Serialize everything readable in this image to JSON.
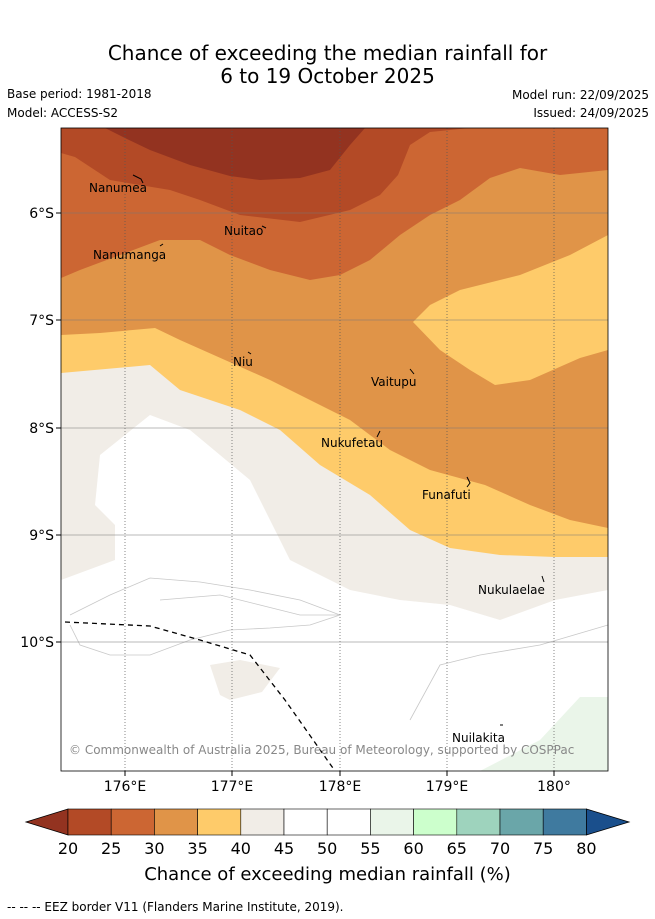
{
  "title_line1": "Chance of exceeding the median rainfall for",
  "title_line2": "6 to 19 October 2025",
  "base_period": "Base period: 1981-2018",
  "model": "Model: ACCESS-S2",
  "model_run": "Model run: 22/09/2025",
  "issued": "Issued: 24/09/2025",
  "copyright": "© Commonwealth of Australia 2025, Bureau of Meteorology, supported by COSPPac",
  "lat_labels": [
    "6°S",
    "7°S",
    "8°S",
    "9°S",
    "10°S"
  ],
  "lon_labels": [
    "176°E",
    "177°E",
    "178°E",
    "179°E",
    "180°"
  ],
  "places": [
    "Nanumea",
    "Nuitao",
    "Nanumanga",
    "Niu",
    "Vaitupu",
    "Nukufetau",
    "Funafuti",
    "Nukulaelae",
    "Nuilakita"
  ],
  "colorbar": {
    "ticks": [
      "20",
      "25",
      "30",
      "35",
      "40",
      "45",
      "50",
      "55",
      "60",
      "65",
      "70",
      "75",
      "80"
    ],
    "colors": [
      "#b34a26",
      "#cc6633",
      "#e09448",
      "#fecb6a",
      "#f1ede7",
      "#ffffff",
      "#ffffff",
      "#eaf5e9",
      "#ccffcc",
      "#9ed3bd",
      "#6aa6a9",
      "#3f7a9f",
      "#1a4f8c"
    ],
    "title": "Chance of exceeding median rainfall (%)"
  },
  "footer": "-- -- -- EEZ border V11 (Flanders Marine Institute, 2019)."
}
